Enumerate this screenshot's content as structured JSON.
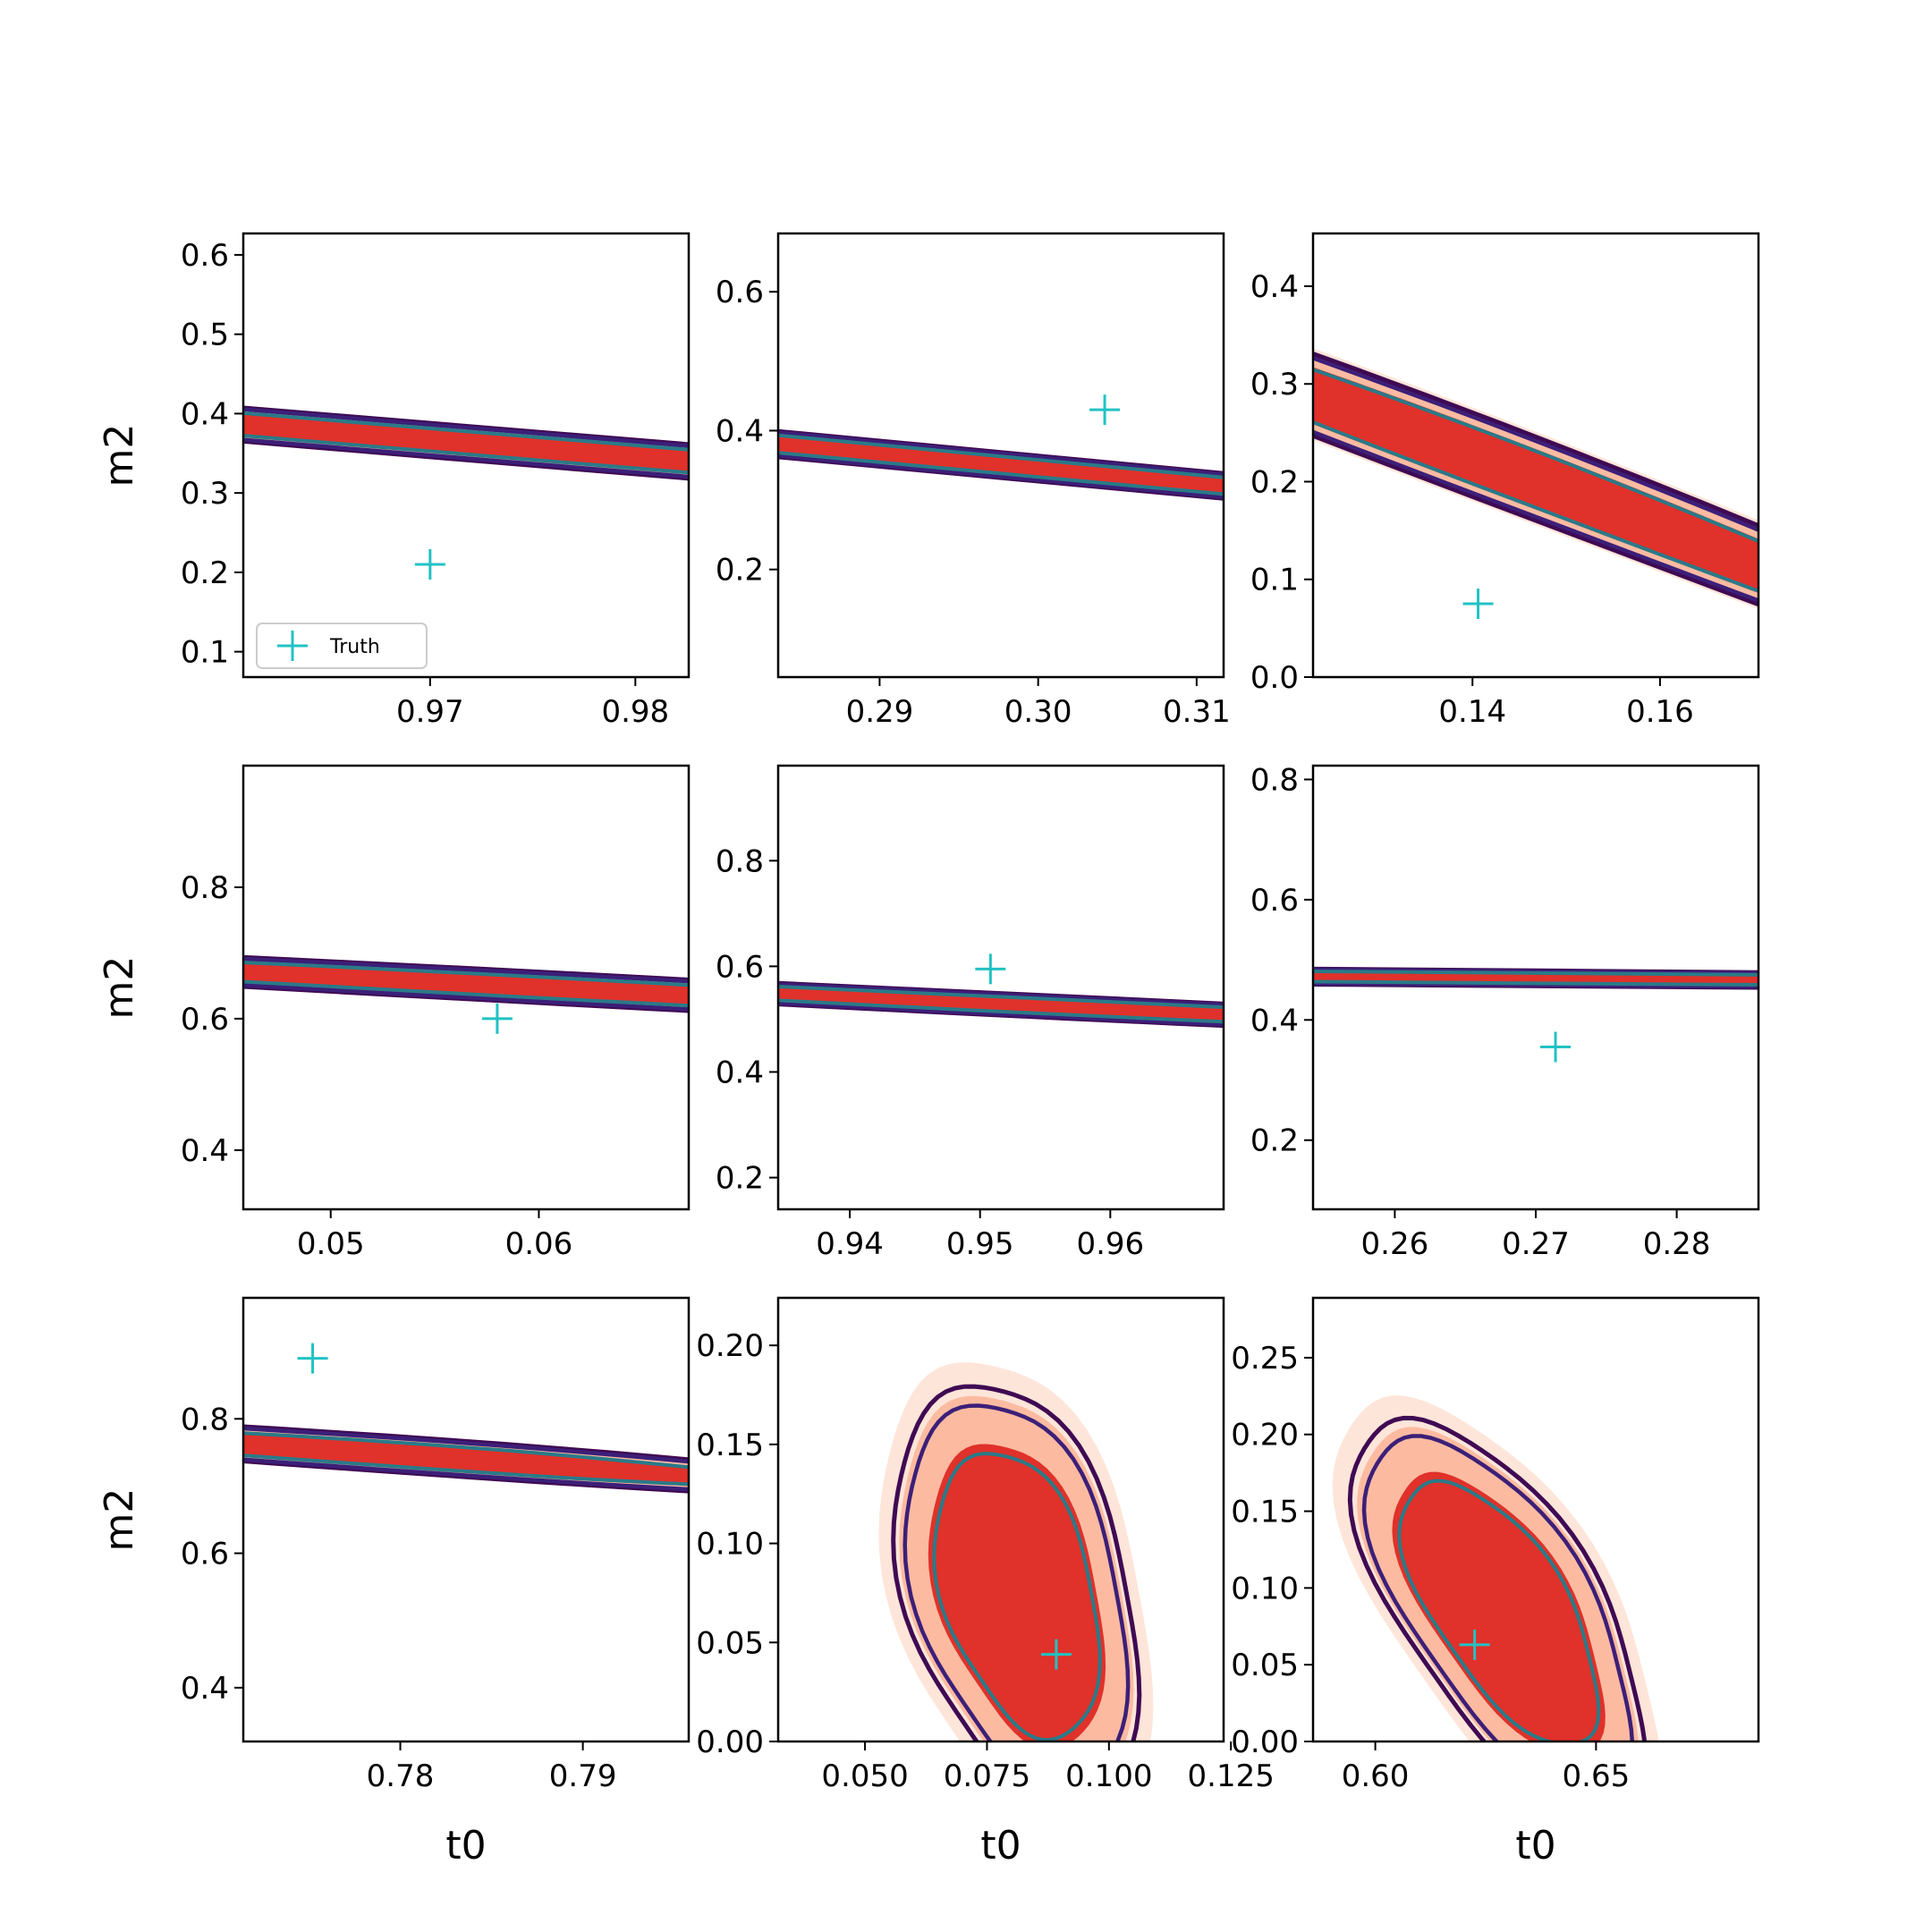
{
  "chart_data": {
    "type": "contour",
    "layout": "3x3",
    "x_axis_label": "t0",
    "y_axis_label": "m2",
    "legend": {
      "entries": [
        "Truth"
      ],
      "placement": "lower-left",
      "panel": 0
    },
    "colors": {
      "fill_levels": [
        "#fee5d9",
        "#fcbba1",
        "#e0312a"
      ],
      "contour_levels": [
        "#3f0a53",
        "#3c1f78",
        "#2a7a88"
      ],
      "truth_marker": "#21c2c4"
    },
    "panels": [
      {
        "xlim": [
          0.9609,
          0.9826
        ],
        "ylim": [
          0.068,
          0.627
        ],
        "xticks": [
          0.97,
          0.98
        ],
        "xtick_labels": [
          "0.97",
          "0.98"
        ],
        "yticks": [
          0.1,
          0.2,
          0.3,
          0.4,
          0.5,
          0.6
        ],
        "ytick_labels": [
          "0.1",
          "0.2",
          "0.3",
          "0.4",
          "0.5",
          "0.6"
        ],
        "center": [
          0.9726,
          0.362
        ],
        "rotation_deg": -65,
        "spread": [
          0.18,
          0.0042
        ],
        "truth": [
          0.97,
          0.21
        ]
      },
      {
        "xlim": [
          0.2836,
          0.3117
        ],
        "ylim": [
          0.045,
          0.684
        ],
        "xticks": [
          0.29,
          0.3,
          0.31
        ],
        "xtick_labels": [
          "0.29",
          "0.30",
          "0.31"
        ],
        "yticks": [
          0.2,
          0.4,
          0.6
        ],
        "ytick_labels": [
          "0.2",
          "0.4",
          "0.6"
        ],
        "center": [
          0.2972,
          0.352
        ],
        "rotation_deg": -65,
        "spread": [
          0.2,
          0.0036
        ],
        "truth": [
          0.3042,
          0.43
        ]
      },
      {
        "xlim": [
          0.123,
          0.1705
        ],
        "ylim": [
          0.0,
          0.454
        ],
        "xticks": [
          0.14,
          0.16
        ],
        "xtick_labels": [
          "0.14",
          "0.16"
        ],
        "yticks": [
          0.0,
          0.1,
          0.2,
          0.3,
          0.4
        ],
        "ytick_labels": [
          "0.0",
          "0.1",
          "0.2",
          "0.3",
          "0.4"
        ],
        "center": [
          0.147,
          0.2
        ],
        "rotation_deg": -75,
        "spread": [
          0.15,
          0.0052
        ],
        "truth": [
          0.1406,
          0.075
        ]
      },
      {
        "xlim": [
          0.0458,
          0.0672
        ],
        "ylim": [
          0.31,
          0.985
        ],
        "xticks": [
          0.05,
          0.06
        ],
        "xtick_labels": [
          "0.05",
          "0.06"
        ],
        "yticks": [
          0.4,
          0.6,
          0.8
        ],
        "ytick_labels": [
          "0.4",
          "0.6",
          "0.8"
        ],
        "center": [
          0.0555,
          0.655
        ],
        "rotation_deg": 30,
        "spread": [
          0.0055,
          0.052
        ],
        "truth": [
          0.058,
          0.6
        ]
      },
      {
        "xlim": [
          0.9345,
          0.9687
        ],
        "ylim": [
          0.14,
          0.98
        ],
        "xticks": [
          0.94,
          0.95,
          0.96
        ],
        "xtick_labels": [
          "0.94",
          "0.95",
          "0.96"
        ],
        "yticks": [
          0.2,
          0.4,
          0.6,
          0.8
        ],
        "ytick_labels": [
          "0.2",
          "0.4",
          "0.6",
          "0.8"
        ],
        "center": [
          0.9508,
          0.53
        ],
        "rotation_deg": 40,
        "spread": [
          0.0062,
          0.065
        ],
        "truth": [
          0.9508,
          0.595
        ]
      },
      {
        "xlim": [
          0.2542,
          0.2858
        ],
        "ylim": [
          0.085,
          0.823
        ],
        "xticks": [
          0.26,
          0.27,
          0.28
        ],
        "xtick_labels": [
          "0.26",
          "0.27",
          "0.28"
        ],
        "yticks": [
          0.2,
          0.4,
          0.6,
          0.8
        ],
        "ytick_labels": [
          "0.2",
          "0.4",
          "0.6",
          "0.8"
        ],
        "center": [
          0.2695,
          0.47
        ],
        "rotation_deg": 80,
        "spread": [
          0.0058,
          0.095
        ],
        "truth": [
          0.2714,
          0.355
        ]
      },
      {
        "xlim": [
          0.7714,
          0.7958
        ],
        "ylim": [
          0.32,
          0.98
        ],
        "xticks": [
          0.78,
          0.79
        ],
        "xtick_labels": [
          "0.78",
          "0.79"
        ],
        "yticks": [
          0.4,
          0.6,
          0.8
        ],
        "ytick_labels": [
          "0.4",
          "0.6",
          "0.8"
        ],
        "center": [
          0.7805,
          0.745
        ],
        "rotation_deg": 25,
        "spread": [
          0.0055,
          0.036
        ],
        "truth": [
          0.7752,
          0.89
        ]
      },
      {
        "xlim": [
          0.0322,
          0.1235
        ],
        "ylim": [
          0.0,
          0.224
        ],
        "xticks": [
          0.05,
          0.075,
          0.1,
          0.125
        ],
        "xtick_labels": [
          "0.050",
          "0.075",
          "0.100",
          "0.125"
        ],
        "yticks": [
          0.0,
          0.05,
          0.1,
          0.15,
          0.2
        ],
        "ytick_labels": [
          "0.00",
          "0.05",
          "0.10",
          "0.15",
          "0.20"
        ],
        "center": [
          0.0815,
          0.075
        ],
        "rotation_deg": -85,
        "spread": [
          0.05,
          0.0108
        ],
        "truth": [
          0.0892,
          0.044
        ]
      },
      {
        "xlim": [
          0.5859,
          0.6868
        ],
        "ylim": [
          0.0,
          0.289
        ],
        "xticks": [
          0.6,
          0.65
        ],
        "xtick_labels": [
          "0.60",
          "0.65"
        ],
        "yticks": [
          0.0,
          0.05,
          0.1,
          0.15,
          0.2,
          0.25
        ],
        "ytick_labels": [
          "0.00",
          "0.05",
          "0.10",
          "0.15",
          "0.20",
          "0.25"
        ],
        "center": [
          0.6285,
          0.085
        ],
        "rotation_deg": -80,
        "spread": [
          0.06,
          0.0115
        ],
        "truth": [
          0.6225,
          0.063
        ]
      }
    ]
  }
}
